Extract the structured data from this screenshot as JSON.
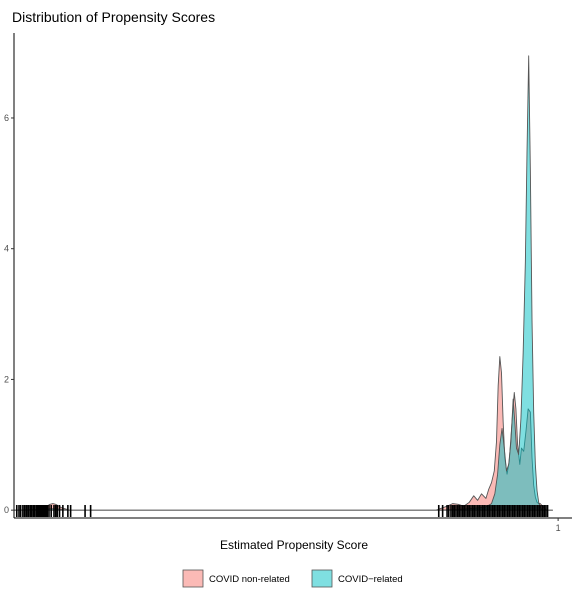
{
  "chart_data": {
    "type": "area",
    "title": "Distribution of Propensity Scores",
    "xlabel": "Estimated Propensity Score",
    "ylabel": "",
    "xlim": [
      0.02,
      1.025
    ],
    "ylim": [
      -0.12,
      7.3
    ],
    "x_ticks": [
      {
        "value": 1,
        "label": "1"
      }
    ],
    "y_ticks": [
      {
        "value": 0,
        "label": "0"
      },
      {
        "value": 2,
        "label": "2"
      },
      {
        "value": 4,
        "label": "4"
      },
      {
        "value": 6,
        "label": "6"
      }
    ],
    "grid": false,
    "legend_position": "bottom",
    "series": [
      {
        "name": "COVID non-related",
        "color": "#F8766D",
        "x": [
          0.02,
          0.06,
          0.075,
          0.085,
          0.09,
          0.095,
          0.105,
          0.12,
          0.78,
          0.79,
          0.8,
          0.81,
          0.82,
          0.83,
          0.84,
          0.848,
          0.855,
          0.862,
          0.87,
          0.875,
          0.88,
          0.885,
          0.889,
          0.892,
          0.895,
          0.898,
          0.901,
          0.904,
          0.908,
          0.912,
          0.917,
          0.921,
          0.924,
          0.927,
          0.931,
          0.934,
          0.938,
          0.942,
          0.946,
          0.95,
          0.953,
          0.956,
          0.959,
          0.962,
          0.965,
          0.968,
          0.972,
          0.976,
          0.98,
          0.99
        ],
        "values": [
          0,
          0.01,
          0.04,
          0.09,
          0.1,
          0.09,
          0.04,
          0.0,
          0,
          0.03,
          0.06,
          0.1,
          0.09,
          0.06,
          0.12,
          0.22,
          0.15,
          0.25,
          0.18,
          0.32,
          0.42,
          0.6,
          1.05,
          1.9,
          2.35,
          2.1,
          1.35,
          0.8,
          0.55,
          0.75,
          1.35,
          1.8,
          1.55,
          1.0,
          0.7,
          0.95,
          0.9,
          1.2,
          1.55,
          1.5,
          0.8,
          0.38,
          0.2,
          0.12,
          0.1,
          0.1,
          0.06,
          0.02,
          0.0,
          0.0
        ]
      },
      {
        "name": "COVID-related",
        "color": "#00BFC4",
        "x": [
          0.02,
          0.06,
          0.085,
          0.095,
          0.12,
          0.78,
          0.82,
          0.85,
          0.87,
          0.88,
          0.886,
          0.891,
          0.895,
          0.899,
          0.903,
          0.907,
          0.911,
          0.915,
          0.919,
          0.922,
          0.925,
          0.929,
          0.933,
          0.937,
          0.941,
          0.944,
          0.947,
          0.95,
          0.953,
          0.956,
          0.959,
          0.962,
          0.965,
          0.968,
          0.971,
          0.974,
          0.978,
          0.983,
          0.99
        ],
        "values": [
          0,
          0.0,
          0.02,
          0.02,
          0.0,
          0,
          0.01,
          0.03,
          0.05,
          0.1,
          0.25,
          0.55,
          1.0,
          1.25,
          0.95,
          0.6,
          0.7,
          1.05,
          1.7,
          1.35,
          0.95,
          0.85,
          1.4,
          2.4,
          3.8,
          5.5,
          6.95,
          5.2,
          2.9,
          1.5,
          0.7,
          0.3,
          0.12,
          0.04,
          0.01,
          0.0,
          0.0,
          0.0,
          0.0
        ]
      }
    ],
    "rug_x": [
      0.025,
      0.029,
      0.032,
      0.036,
      0.039,
      0.042,
      0.045,
      0.047,
      0.05,
      0.052,
      0.055,
      0.057,
      0.06,
      0.062,
      0.064,
      0.066,
      0.068,
      0.07,
      0.072,
      0.074,
      0.076,
      0.078,
      0.08,
      0.083,
      0.087,
      0.092,
      0.095,
      0.098,
      0.102,
      0.108,
      0.117,
      0.122,
      0.148,
      0.158,
      0.785,
      0.792,
      0.8,
      0.803,
      0.807,
      0.81,
      0.813,
      0.816,
      0.819,
      0.822,
      0.825,
      0.828,
      0.831,
      0.834,
      0.837,
      0.84,
      0.843,
      0.846,
      0.849,
      0.852,
      0.855,
      0.858,
      0.861,
      0.864,
      0.867,
      0.87,
      0.873,
      0.876,
      0.879,
      0.882,
      0.885,
      0.888,
      0.891,
      0.894,
      0.897,
      0.9,
      0.903,
      0.906,
      0.909,
      0.912,
      0.915,
      0.918,
      0.921,
      0.924,
      0.927,
      0.93,
      0.933,
      0.936,
      0.939,
      0.942,
      0.945,
      0.948,
      0.951,
      0.954,
      0.957,
      0.96,
      0.963,
      0.966,
      0.969,
      0.972,
      0.975,
      0.978,
      0.981
    ]
  },
  "legend": {
    "items": [
      {
        "label": "COVID non-related",
        "color": "#F8766D"
      },
      {
        "label": "COVID−related",
        "color": "#00BFC4"
      }
    ]
  }
}
